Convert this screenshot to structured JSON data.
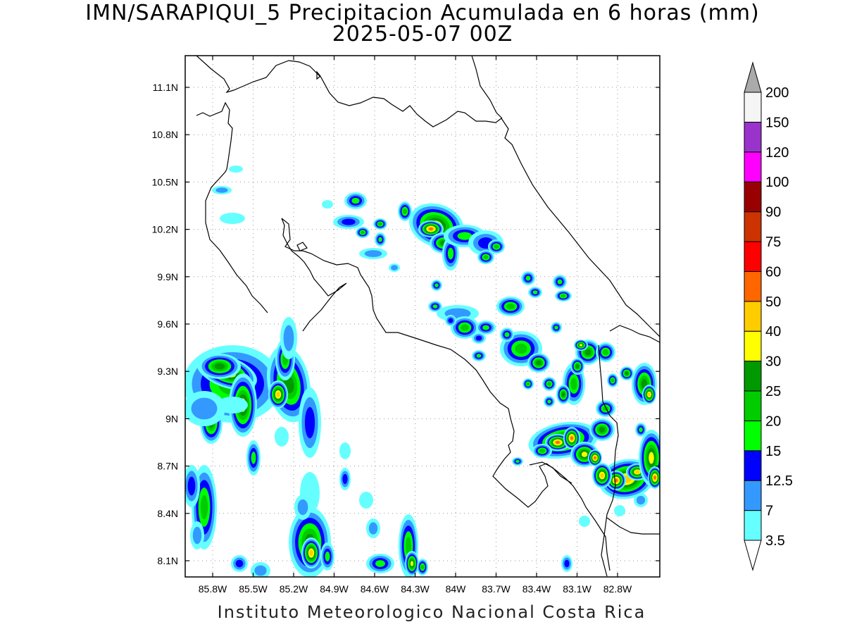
{
  "title_line1": "IMN/SARAPIQUI_5 Precipitacion Acumulada en 6 horas (mm)",
  "title_line2": "2025-05-07 00Z",
  "footer": "Instituto Meteorologico Nacional Costa Rica",
  "lat_labels": [
    "11.1N",
    "10.8N",
    "10.5N",
    "10.2N",
    "9.9N",
    "9.6N",
    "9.3N",
    "9N",
    "8.7N",
    "8.4N",
    "8.1N"
  ],
  "lon_labels": [
    "85.8W",
    "85.5W",
    "85.2W",
    "84.9W",
    "84.6W",
    "84.3W",
    "84W",
    "83.7W",
    "83.4W",
    "83.1W",
    "82.8W"
  ],
  "legend": {
    "levels": [
      {
        "label": "3.5",
        "color": "#66ffff"
      },
      {
        "label": "7",
        "color": "#3399ff"
      },
      {
        "label": "12.5",
        "color": "#0000ff"
      },
      {
        "label": "15",
        "color": "#00ff00"
      },
      {
        "label": "20",
        "color": "#00cc00"
      },
      {
        "label": "25",
        "color": "#009900"
      },
      {
        "label": "30",
        "color": "#ffff00"
      },
      {
        "label": "40",
        "color": "#ffcc00"
      },
      {
        "label": "50",
        "color": "#ff6600"
      },
      {
        "label": "60",
        "color": "#ff0000"
      },
      {
        "label": "75",
        "color": "#cc3300"
      },
      {
        "label": "90",
        "color": "#990000"
      },
      {
        "label": "100",
        "color": "#ff00ff"
      },
      {
        "label": "120",
        "color": "#9933cc"
      },
      {
        "label": "150",
        "color": "#f5f5f5"
      },
      {
        "label": "200",
        "color": "#aaaaaa"
      }
    ]
  }
}
